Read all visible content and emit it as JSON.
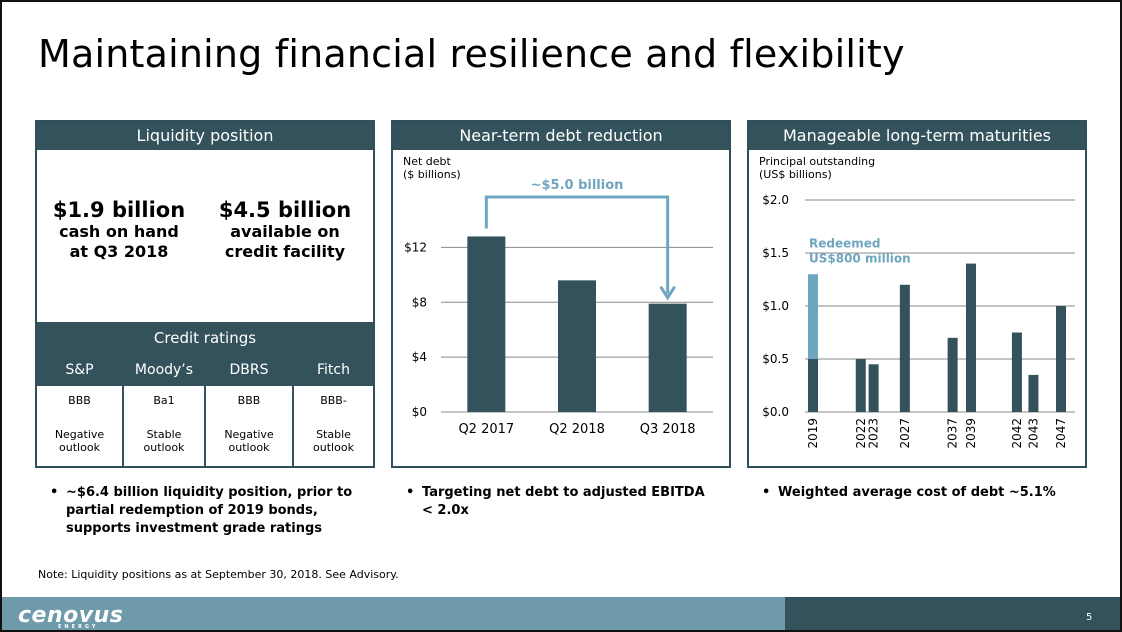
{
  "title": "Maintaining financial resilience and flexibility",
  "liquidity": {
    "header": "Liquidity position",
    "cash": {
      "amount": "$1.9 billion",
      "line1": "cash on hand",
      "line2": "at Q3 2018"
    },
    "facility": {
      "amount": "$4.5 billion",
      "line1": "available on",
      "line2": "credit facility"
    },
    "ratings_header": "Credit ratings",
    "ratings": [
      {
        "agency": "S&P",
        "grade": "BBB",
        "outlook1": "Negative",
        "outlook2": "outlook"
      },
      {
        "agency": "Moody’s",
        "grade": "Ba1",
        "outlook1": "Stable",
        "outlook2": "outlook"
      },
      {
        "agency": "DBRS",
        "grade": "BBB",
        "outlook1": "Negative",
        "outlook2": "outlook"
      },
      {
        "agency": "Fitch",
        "grade": "BBB-",
        "outlook1": "Stable",
        "outlook2": "outlook"
      }
    ],
    "bullet": [
      "~$6.4 billion liquidity position, prior to",
      "partial redemption of 2019 bonds,",
      "supports investment grade ratings"
    ]
  },
  "debt": {
    "header": "Near-term debt reduction",
    "bullet": [
      "Targeting net debt to adjusted EBITDA",
      "< 2.0x"
    ]
  },
  "maturities": {
    "header": "Manageable long-term maturities",
    "bullet": [
      "Weighted average cost of debt ~5.1%"
    ]
  },
  "note": "Note: Liquidity positions as at September 30, 2018. See Advisory.",
  "footer": {
    "logo": "cenovus",
    "logo_sub": "ENERGY",
    "page_number": "5"
  },
  "colors": {
    "dark_teal": "#33525c",
    "light_teal": "#6e9aa9",
    "highlight": "#6fa6bf"
  },
  "chart_data": [
    {
      "type": "bar",
      "ylabel_line1": "Net debt",
      "ylabel_line2": "($ billions)",
      "categories": [
        "Q2 2017",
        "Q2 2018",
        "Q3 2018"
      ],
      "values": [
        12.8,
        9.6,
        7.9
      ],
      "ylim": [
        0,
        14
      ],
      "yticks": [
        0,
        4,
        8,
        12
      ],
      "ytick_labels": [
        "$0",
        "$4",
        "$8",
        "$12"
      ],
      "grid": true,
      "annotation": "~$5.0 billion"
    },
    {
      "type": "bar",
      "ylabel_line1": "Principal outstanding",
      "ylabel_line2": "(US$ billions)",
      "categories": [
        "2019",
        "2022",
        "2023",
        "2027",
        "2037",
        "2039",
        "2042",
        "2043",
        "2047"
      ],
      "values": [
        0.5,
        0.5,
        0.45,
        1.2,
        0.7,
        1.4,
        0.75,
        0.35,
        1.0
      ],
      "redeemed": [
        0.8,
        0,
        0,
        0,
        0,
        0,
        0,
        0,
        0
      ],
      "ylim": [
        0,
        2.0
      ],
      "yticks": [
        0,
        0.5,
        1.0,
        1.5,
        2.0
      ],
      "ytick_labels": [
        "$0.0",
        "$0.5",
        "$1.0",
        "$1.5",
        "$2.0"
      ],
      "grid": true,
      "annotation_line1": "Redeemed",
      "annotation_line2": "US$800 million"
    }
  ]
}
